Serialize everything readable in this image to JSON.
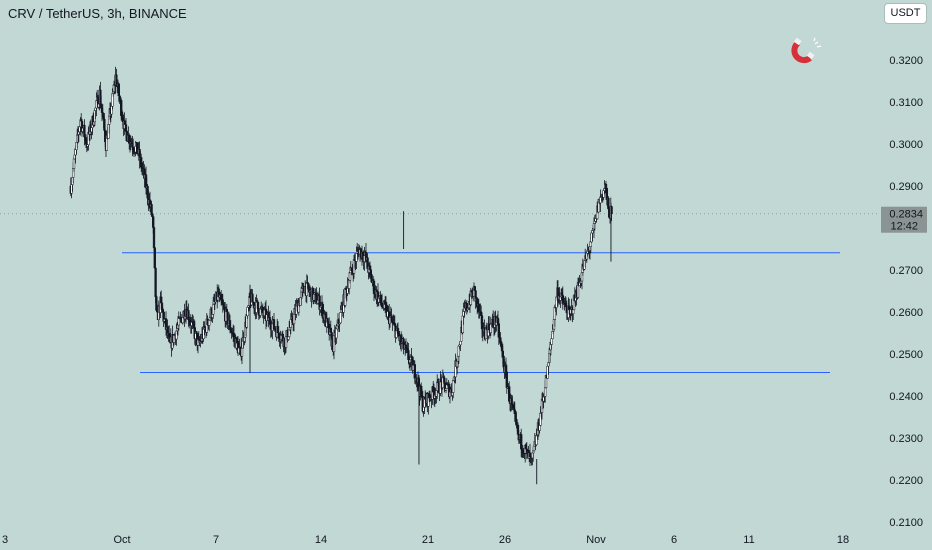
{
  "header": {
    "symbol_title": "CRV / TetherUS, 3h, BINANCE",
    "currency_button": "USDT"
  },
  "icons": {
    "logo": "magnet-icon"
  },
  "colors": {
    "background": "#c1d8d4",
    "candle": "#131722",
    "support_line": "#2962ff",
    "price_tag_bg": "#8a9593"
  },
  "chart_data": {
    "type": "candlestick",
    "symbol": "CRV / TetherUS",
    "interval": "3h",
    "exchange": "BINANCE",
    "ylim": [
      0.2085,
      0.3315
    ],
    "y_ticks": [
      "0.3200",
      "0.3100",
      "0.3000",
      "0.2900",
      "0.2700",
      "0.2600",
      "0.2500",
      "0.2400",
      "0.2300",
      "0.2200",
      "0.2100"
    ],
    "x_ticks": [
      "3",
      "Oct",
      "7",
      "14",
      "21",
      "26",
      "Nov",
      "6",
      "11",
      "18"
    ],
    "last_price": "0.2834",
    "countdown": "12:42",
    "horizontal_levels": [
      {
        "value": 0.2741,
        "from": "Oct 1",
        "to": "Nov 13"
      },
      {
        "value": 0.2456,
        "from": "Oct 3",
        "to": "Nov 13"
      }
    ],
    "price_path": [
      {
        "d": 0,
        "p": 0.29
      },
      {
        "d": 1.5,
        "p": 0.306
      },
      {
        "d": 2.5,
        "p": 0.3
      },
      {
        "d": 4.5,
        "p": 0.312
      },
      {
        "d": 5.5,
        "p": 0.3
      },
      {
        "d": 7.0,
        "p": 0.316
      },
      {
        "d": 8.5,
        "p": 0.303
      },
      {
        "d": 10.5,
        "p": 0.298
      },
      {
        "d": 11.5,
        "p": 0.292
      },
      {
        "d": 12.8,
        "p": 0.282
      },
      {
        "d": 13.4,
        "p": 0.258
      },
      {
        "d": 14.0,
        "p": 0.262
      },
      {
        "d": 15.5,
        "p": 0.252
      },
      {
        "d": 18.0,
        "p": 0.261
      },
      {
        "d": 20.0,
        "p": 0.252
      },
      {
        "d": 23.0,
        "p": 0.264
      },
      {
        "d": 26.5,
        "p": 0.25
      },
      {
        "d": 28.0,
        "p": 0.263
      },
      {
        "d": 31.0,
        "p": 0.258
      },
      {
        "d": 33.5,
        "p": 0.253
      },
      {
        "d": 36.5,
        "p": 0.266
      },
      {
        "d": 39.0,
        "p": 0.262
      },
      {
        "d": 41.0,
        "p": 0.252
      },
      {
        "d": 43.5,
        "p": 0.268
      },
      {
        "d": 45.0,
        "p": 0.275
      },
      {
        "d": 46.0,
        "p": 0.273
      },
      {
        "d": 47.5,
        "p": 0.265
      },
      {
        "d": 50.0,
        "p": 0.258
      },
      {
        "d": 52.5,
        "p": 0.25
      },
      {
        "d": 54.0,
        "p": 0.245
      },
      {
        "d": 55.0,
        "p": 0.238
      },
      {
        "d": 58.0,
        "p": 0.243
      },
      {
        "d": 59.5,
        "p": 0.241
      },
      {
        "d": 61.5,
        "p": 0.26
      },
      {
        "d": 63.0,
        "p": 0.265
      },
      {
        "d": 64.5,
        "p": 0.255
      },
      {
        "d": 66.5,
        "p": 0.258
      },
      {
        "d": 68.5,
        "p": 0.24
      },
      {
        "d": 70.0,
        "p": 0.23
      },
      {
        "d": 72.0,
        "p": 0.224
      },
      {
        "d": 73.0,
        "p": 0.232
      },
      {
        "d": 74.5,
        "p": 0.246
      },
      {
        "d": 76.0,
        "p": 0.265
      },
      {
        "d": 78.0,
        "p": 0.259
      },
      {
        "d": 80.0,
        "p": 0.27
      },
      {
        "d": 81.5,
        "p": 0.278
      },
      {
        "d": 82.5,
        "p": 0.286
      },
      {
        "d": 83.5,
        "p": 0.29
      },
      {
        "d": 84.0,
        "p": 0.284
      },
      {
        "d": 84.5,
        "p": 0.2834
      }
    ]
  }
}
